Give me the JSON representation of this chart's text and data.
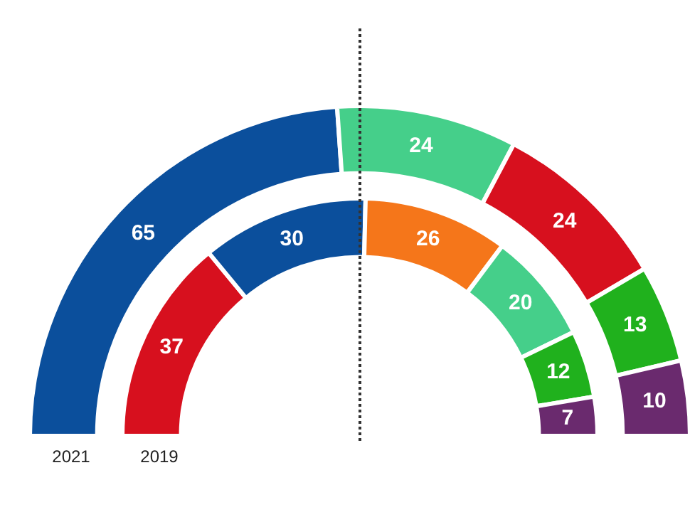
{
  "chart_data": [
    {
      "type": "donut",
      "title": "2021",
      "categories": [
        null,
        null,
        null,
        null,
        null
      ],
      "values": [
        65,
        24,
        24,
        13,
        10
      ],
      "colors": [
        "#0b4f9c",
        "#45cf8a",
        "#d7101e",
        "#20b11d",
        "#6a2a6e"
      ],
      "data_labels": true
    },
    {
      "type": "donut",
      "title": "2019",
      "categories": [
        null,
        null,
        null,
        null,
        null,
        null
      ],
      "values": [
        37,
        30,
        26,
        20,
        12,
        7
      ],
      "colors": [
        "#d7101e",
        "#0b4f9c",
        "#f5761a",
        "#45cf8a",
        "#20b11d",
        "#6a2a6e"
      ],
      "data_labels": true
    }
  ]
}
